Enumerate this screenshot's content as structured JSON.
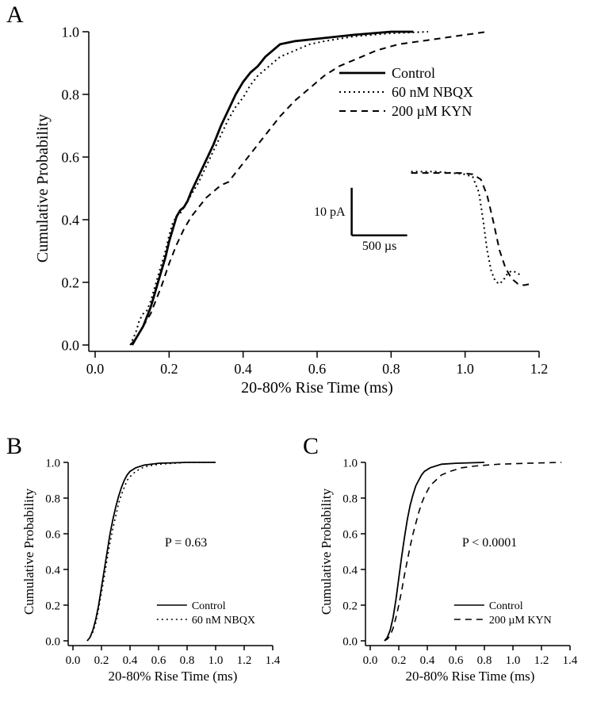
{
  "panelA": {
    "label": "A",
    "type": "line",
    "xlabel": "20-80% Rise Time (ms)",
    "ylabel": "Cumulative Probability",
    "xlim": [
      0.0,
      1.2
    ],
    "ylim": [
      0.0,
      1.0
    ],
    "xticks": [
      0.0,
      0.2,
      0.4,
      0.6,
      0.8,
      1.0,
      1.2
    ],
    "yticks": [
      0.0,
      0.2,
      0.4,
      0.6,
      0.8,
      1.0
    ],
    "label_fontsize": 20,
    "tick_fontsize": 18,
    "colors": {
      "line": "#000000",
      "bg": "#ffffff"
    },
    "legend": {
      "entries": [
        {
          "label": "Control",
          "dash": "solid",
          "width": 2.8
        },
        {
          "label": "60 nM NBQX",
          "dash": "dot",
          "width": 2.0
        },
        {
          "label": "200 µM KYN",
          "dash": "dash",
          "width": 2.0
        }
      ]
    },
    "series": [
      {
        "name": "Control",
        "dash": "solid",
        "width": 2.8,
        "points": [
          [
            0.1,
            0.0
          ],
          [
            0.11,
            0.02
          ],
          [
            0.12,
            0.04
          ],
          [
            0.13,
            0.06
          ],
          [
            0.14,
            0.09
          ],
          [
            0.15,
            0.12
          ],
          [
            0.16,
            0.16
          ],
          [
            0.17,
            0.2
          ],
          [
            0.18,
            0.24
          ],
          [
            0.19,
            0.28
          ],
          [
            0.2,
            0.33
          ],
          [
            0.21,
            0.37
          ],
          [
            0.22,
            0.41
          ],
          [
            0.23,
            0.43
          ],
          [
            0.24,
            0.44
          ],
          [
            0.25,
            0.46
          ],
          [
            0.26,
            0.49
          ],
          [
            0.28,
            0.54
          ],
          [
            0.3,
            0.59
          ],
          [
            0.32,
            0.64
          ],
          [
            0.34,
            0.7
          ],
          [
            0.36,
            0.75
          ],
          [
            0.38,
            0.8
          ],
          [
            0.4,
            0.84
          ],
          [
            0.42,
            0.87
          ],
          [
            0.44,
            0.89
          ],
          [
            0.46,
            0.92
          ],
          [
            0.48,
            0.94
          ],
          [
            0.5,
            0.96
          ],
          [
            0.54,
            0.97
          ],
          [
            0.58,
            0.975
          ],
          [
            0.62,
            0.98
          ],
          [
            0.7,
            0.99
          ],
          [
            0.8,
            1.0
          ],
          [
            0.86,
            1.0
          ]
        ]
      },
      {
        "name": "60 nM NBQX",
        "dash": "dot",
        "width": 2.0,
        "points": [
          [
            0.095,
            0.0
          ],
          [
            0.11,
            0.04
          ],
          [
            0.12,
            0.08
          ],
          [
            0.13,
            0.1
          ],
          [
            0.14,
            0.11
          ],
          [
            0.15,
            0.14
          ],
          [
            0.16,
            0.18
          ],
          [
            0.17,
            0.22
          ],
          [
            0.18,
            0.26
          ],
          [
            0.19,
            0.3
          ],
          [
            0.2,
            0.35
          ],
          [
            0.21,
            0.39
          ],
          [
            0.22,
            0.41
          ],
          [
            0.23,
            0.42
          ],
          [
            0.24,
            0.44
          ],
          [
            0.26,
            0.48
          ],
          [
            0.28,
            0.52
          ],
          [
            0.3,
            0.57
          ],
          [
            0.32,
            0.62
          ],
          [
            0.34,
            0.67
          ],
          [
            0.36,
            0.72
          ],
          [
            0.38,
            0.76
          ],
          [
            0.4,
            0.79
          ],
          [
            0.42,
            0.83
          ],
          [
            0.44,
            0.86
          ],
          [
            0.46,
            0.88
          ],
          [
            0.48,
            0.9
          ],
          [
            0.5,
            0.92
          ],
          [
            0.54,
            0.94
          ],
          [
            0.58,
            0.96
          ],
          [
            0.62,
            0.97
          ],
          [
            0.7,
            0.985
          ],
          [
            0.8,
            0.995
          ],
          [
            0.9,
            1.0
          ]
        ]
      },
      {
        "name": "200 µM KYN",
        "dash": "dash",
        "width": 2.0,
        "points": [
          [
            0.095,
            0.0
          ],
          [
            0.11,
            0.02
          ],
          [
            0.12,
            0.04
          ],
          [
            0.13,
            0.06
          ],
          [
            0.14,
            0.08
          ],
          [
            0.15,
            0.1
          ],
          [
            0.16,
            0.13
          ],
          [
            0.18,
            0.19
          ],
          [
            0.2,
            0.26
          ],
          [
            0.22,
            0.32
          ],
          [
            0.24,
            0.37
          ],
          [
            0.26,
            0.41
          ],
          [
            0.28,
            0.44
          ],
          [
            0.3,
            0.47
          ],
          [
            0.32,
            0.49
          ],
          [
            0.34,
            0.51
          ],
          [
            0.36,
            0.52
          ],
          [
            0.38,
            0.55
          ],
          [
            0.4,
            0.58
          ],
          [
            0.42,
            0.61
          ],
          [
            0.44,
            0.64
          ],
          [
            0.46,
            0.67
          ],
          [
            0.48,
            0.7
          ],
          [
            0.5,
            0.73
          ],
          [
            0.54,
            0.78
          ],
          [
            0.58,
            0.82
          ],
          [
            0.62,
            0.86
          ],
          [
            0.66,
            0.89
          ],
          [
            0.7,
            0.91
          ],
          [
            0.76,
            0.94
          ],
          [
            0.82,
            0.96
          ],
          [
            0.88,
            0.97
          ],
          [
            0.94,
            0.98
          ],
          [
            1.0,
            0.99
          ],
          [
            1.06,
            1.0
          ]
        ]
      }
    ],
    "inset": {
      "scalebar": {
        "y_label": "10 pA",
        "x_label": "500 µs",
        "fontsize": 16
      },
      "traces": [
        {
          "name": "NBQX-trace",
          "dash": "dot",
          "width": 2.0,
          "points": [
            [
              0,
              0.56
            ],
            [
              60,
              0.56
            ],
            [
              100,
              0.555
            ],
            [
              130,
              0.55
            ],
            [
              150,
              0.54
            ],
            [
              165,
              0.48
            ],
            [
              175,
              0.38
            ],
            [
              185,
              0.26
            ],
            [
              195,
              0.18
            ],
            [
              205,
              0.14
            ],
            [
              215,
              0.13
            ],
            [
              225,
              0.145
            ],
            [
              235,
              0.17
            ],
            [
              245,
              0.18
            ],
            [
              255,
              0.175
            ],
            [
              265,
              0.165
            ]
          ]
        },
        {
          "name": "KYN-trace",
          "dash": "dash",
          "width": 2.0,
          "points": [
            [
              0,
              0.555
            ],
            [
              60,
              0.555
            ],
            [
              120,
              0.555
            ],
            [
              150,
              0.55
            ],
            [
              170,
              0.53
            ],
            [
              185,
              0.47
            ],
            [
              200,
              0.37
            ],
            [
              215,
              0.26
            ],
            [
              230,
              0.19
            ],
            [
              245,
              0.15
            ],
            [
              260,
              0.13
            ],
            [
              275,
              0.125
            ],
            [
              290,
              0.13
            ]
          ]
        }
      ]
    }
  },
  "panelB": {
    "label": "B",
    "type": "line",
    "xlabel": "20-80% Rise Time (ms)",
    "ylabel": "Cumulative Probability",
    "xlim": [
      0.0,
      1.4
    ],
    "ylim": [
      0.0,
      1.0
    ],
    "xticks": [
      0.0,
      0.2,
      0.4,
      0.6,
      0.8,
      1.0,
      1.2,
      1.4
    ],
    "yticks": [
      0.0,
      0.2,
      0.4,
      0.6,
      0.8,
      1.0
    ],
    "label_fontsize": 17,
    "tick_fontsize": 15,
    "p_text": "P = 0.63",
    "legend": {
      "entries": [
        {
          "label": "Control",
          "dash": "solid",
          "width": 1.6
        },
        {
          "label": "60 nM NBQX",
          "dash": "dot",
          "width": 1.6
        }
      ]
    },
    "series": [
      {
        "name": "Control",
        "dash": "solid",
        "width": 1.8,
        "points": [
          [
            0.1,
            0.0
          ],
          [
            0.12,
            0.02
          ],
          [
            0.14,
            0.06
          ],
          [
            0.16,
            0.12
          ],
          [
            0.18,
            0.2
          ],
          [
            0.2,
            0.3
          ],
          [
            0.22,
            0.4
          ],
          [
            0.24,
            0.5
          ],
          [
            0.26,
            0.6
          ],
          [
            0.28,
            0.68
          ],
          [
            0.3,
            0.75
          ],
          [
            0.32,
            0.81
          ],
          [
            0.34,
            0.86
          ],
          [
            0.36,
            0.9
          ],
          [
            0.38,
            0.93
          ],
          [
            0.4,
            0.95
          ],
          [
            0.44,
            0.97
          ],
          [
            0.5,
            0.985
          ],
          [
            0.6,
            0.995
          ],
          [
            0.8,
            1.0
          ],
          [
            1.0,
            1.0
          ]
        ]
      },
      {
        "name": "60 nM NBQX",
        "dash": "dot",
        "width": 1.6,
        "points": [
          [
            0.1,
            0.0
          ],
          [
            0.12,
            0.02
          ],
          [
            0.14,
            0.05
          ],
          [
            0.16,
            0.1
          ],
          [
            0.18,
            0.18
          ],
          [
            0.2,
            0.27
          ],
          [
            0.22,
            0.36
          ],
          [
            0.24,
            0.46
          ],
          [
            0.26,
            0.55
          ],
          [
            0.28,
            0.63
          ],
          [
            0.3,
            0.7
          ],
          [
            0.32,
            0.77
          ],
          [
            0.34,
            0.82
          ],
          [
            0.36,
            0.86
          ],
          [
            0.38,
            0.9
          ],
          [
            0.4,
            0.92
          ],
          [
            0.44,
            0.95
          ],
          [
            0.5,
            0.975
          ],
          [
            0.6,
            0.99
          ],
          [
            0.8,
            1.0
          ],
          [
            1.0,
            1.0
          ]
        ]
      }
    ]
  },
  "panelC": {
    "label": "C",
    "type": "line",
    "xlabel": "20-80% Rise Time (ms)",
    "ylabel": "Cumulative Probability",
    "xlim": [
      0.0,
      1.4
    ],
    "ylim": [
      0.0,
      1.0
    ],
    "xticks": [
      0.0,
      0.2,
      0.4,
      0.6,
      0.8,
      1.0,
      1.2,
      1.4
    ],
    "yticks": [
      0.0,
      0.2,
      0.4,
      0.6,
      0.8,
      1.0
    ],
    "label_fontsize": 17,
    "tick_fontsize": 15,
    "p_text": "P < 0.0001",
    "legend": {
      "entries": [
        {
          "label": "Control",
          "dash": "solid",
          "width": 1.6
        },
        {
          "label": "200 µM KYN",
          "dash": "dash",
          "width": 1.6
        }
      ]
    },
    "series": [
      {
        "name": "Control",
        "dash": "solid",
        "width": 1.8,
        "points": [
          [
            0.1,
            0.0
          ],
          [
            0.12,
            0.02
          ],
          [
            0.14,
            0.06
          ],
          [
            0.16,
            0.13
          ],
          [
            0.18,
            0.23
          ],
          [
            0.2,
            0.35
          ],
          [
            0.22,
            0.47
          ],
          [
            0.24,
            0.58
          ],
          [
            0.26,
            0.68
          ],
          [
            0.28,
            0.76
          ],
          [
            0.3,
            0.82
          ],
          [
            0.32,
            0.87
          ],
          [
            0.34,
            0.9
          ],
          [
            0.36,
            0.93
          ],
          [
            0.38,
            0.95
          ],
          [
            0.42,
            0.97
          ],
          [
            0.5,
            0.99
          ],
          [
            0.6,
            0.995
          ],
          [
            0.8,
            1.0
          ]
        ]
      },
      {
        "name": "200 µM KYN",
        "dash": "dash",
        "width": 1.6,
        "points": [
          [
            0.1,
            0.0
          ],
          [
            0.12,
            0.01
          ],
          [
            0.14,
            0.03
          ],
          [
            0.16,
            0.07
          ],
          [
            0.18,
            0.13
          ],
          [
            0.2,
            0.2
          ],
          [
            0.22,
            0.28
          ],
          [
            0.24,
            0.37
          ],
          [
            0.26,
            0.45
          ],
          [
            0.28,
            0.53
          ],
          [
            0.3,
            0.6
          ],
          [
            0.32,
            0.66
          ],
          [
            0.34,
            0.72
          ],
          [
            0.36,
            0.77
          ],
          [
            0.38,
            0.81
          ],
          [
            0.42,
            0.87
          ],
          [
            0.46,
            0.9
          ],
          [
            0.5,
            0.93
          ],
          [
            0.56,
            0.95
          ],
          [
            0.64,
            0.97
          ],
          [
            0.74,
            0.98
          ],
          [
            0.9,
            0.99
          ],
          [
            1.1,
            0.995
          ],
          [
            1.34,
            1.0
          ]
        ]
      }
    ]
  }
}
